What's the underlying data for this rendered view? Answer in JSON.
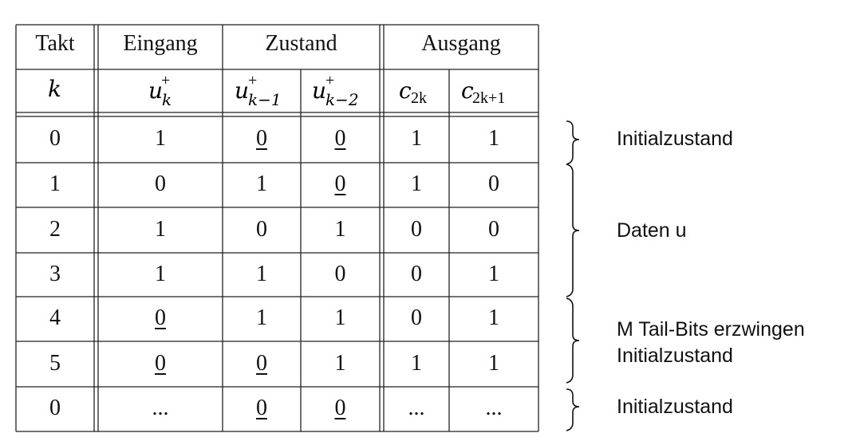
{
  "headers": {
    "takt": "Takt",
    "eingang": "Eingang",
    "zustand": "Zustand",
    "ausgang": "Ausgang"
  },
  "symbols": {
    "k": "k",
    "u": "u",
    "c": "c",
    "plus": "+",
    "sub_k": "k",
    "sub_k_1": "k−1",
    "sub_k_2": "k−2",
    "sub_2k": "2k",
    "sub_2k1": "2k+1"
  },
  "rows": [
    {
      "k": "0",
      "u": "1",
      "s1": "0",
      "s2": "0",
      "c1": "1",
      "c2": "1",
      "underline": [
        "s1",
        "s2"
      ]
    },
    {
      "k": "1",
      "u": "0",
      "s1": "1",
      "s2": "0",
      "c1": "1",
      "c2": "0",
      "underline": [
        "s2"
      ]
    },
    {
      "k": "2",
      "u": "1",
      "s1": "0",
      "s2": "1",
      "c1": "0",
      "c2": "0",
      "underline": []
    },
    {
      "k": "3",
      "u": "1",
      "s1": "1",
      "s2": "0",
      "c1": "0",
      "c2": "1",
      "underline": []
    },
    {
      "k": "4",
      "u": "0",
      "s1": "1",
      "s2": "1",
      "c1": "0",
      "c2": "1",
      "underline": [
        "u"
      ]
    },
    {
      "k": "5",
      "u": "0",
      "s1": "0",
      "s2": "1",
      "c1": "1",
      "c2": "1",
      "underline": [
        "u",
        "s1"
      ]
    },
    {
      "k": "0",
      "u": "...",
      "s1": "0",
      "s2": "0",
      "c1": "...",
      "c2": "...",
      "underline": [
        "s1",
        "s2"
      ]
    }
  ],
  "annotations": [
    {
      "id": "initialzustand-top",
      "lines": [
        "Initialzustand"
      ]
    },
    {
      "id": "daten",
      "lines": [
        "Daten u"
      ]
    },
    {
      "id": "tail-bits",
      "lines": [
        "M Tail-Bits erzwingen",
        "Initialzustand"
      ]
    },
    {
      "id": "initialzustand-bottom",
      "lines": [
        "Initialzustand"
      ]
    }
  ]
}
